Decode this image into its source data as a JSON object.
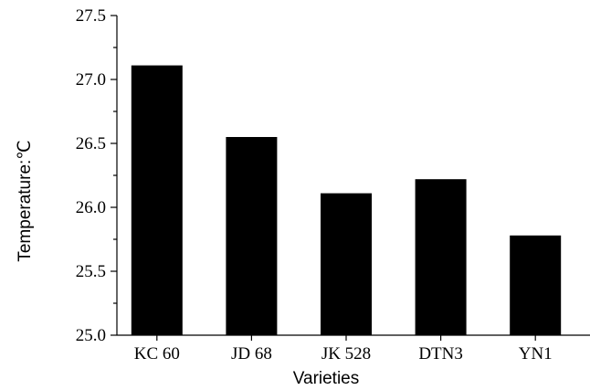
{
  "chart_data": {
    "type": "bar",
    "categories": [
      "KC 60",
      "JD 68",
      "JK 528",
      "DTN3",
      "YN1"
    ],
    "values": [
      27.11,
      26.55,
      26.11,
      26.22,
      25.78
    ],
    "title": "",
    "xlabel": "Varieties",
    "ylabel": "Temperature:℃",
    "ylim": [
      25.0,
      27.5
    ],
    "yticks": [
      25.0,
      25.5,
      26.0,
      26.5,
      27.0,
      27.5
    ],
    "ytick_labels": [
      "25.0",
      "25.5",
      "26.0",
      "26.5",
      "27.0",
      "27.5"
    ],
    "grid": false,
    "legend": "none",
    "bar_color": "#000000"
  }
}
